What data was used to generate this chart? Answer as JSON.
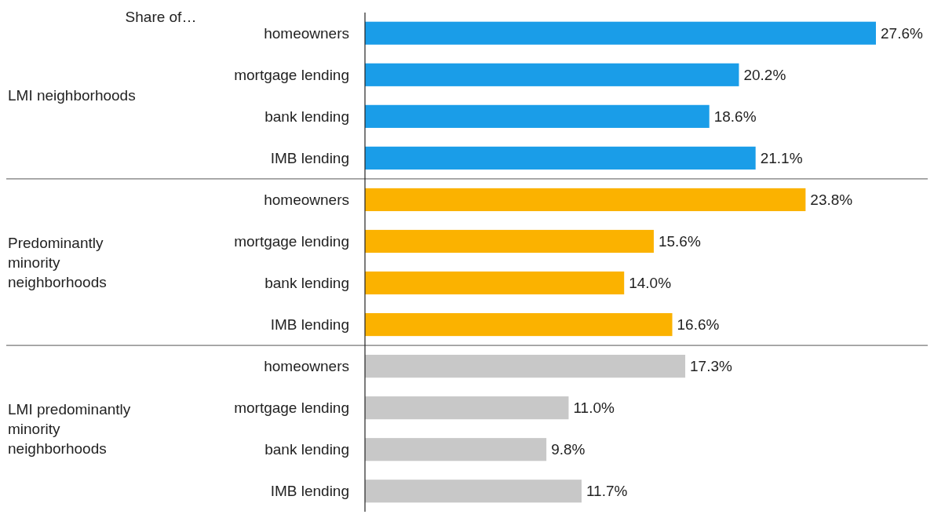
{
  "chart_data": {
    "type": "bar",
    "orientation": "horizontal",
    "ylabel": "Share of…",
    "categories": [
      "homeowners",
      "mortgage lending",
      "bank lending",
      "IMB lending",
      "homeowners",
      "mortgage lending",
      "bank lending",
      "IMB lending",
      "homeowners",
      "mortgage lending",
      "bank lending",
      "IMB lending"
    ],
    "series": [
      {
        "color": "#1a9de8",
        "values": [
          27.6,
          20.2,
          18.6,
          21.1,
          null,
          null,
          null,
          null,
          null,
          null,
          null,
          null
        ],
        "value_labels": [
          "27.6%",
          "20.2%",
          "18.6%",
          "21.1%",
          null,
          null,
          null,
          null,
          null,
          null,
          null,
          null
        ]
      },
      {
        "color": "#fbb200",
        "values": [
          null,
          null,
          null,
          null,
          23.8,
          15.6,
          14.0,
          16.6,
          null,
          null,
          null,
          null
        ],
        "value_labels": [
          null,
          null,
          null,
          null,
          "23.8%",
          "15.6%",
          "14.0%",
          "16.6%",
          null,
          null,
          null,
          null
        ]
      },
      {
        "color": "#c8c8c8",
        "values": [
          null,
          null,
          null,
          null,
          null,
          null,
          null,
          null,
          17.3,
          11.0,
          9.8,
          11.7
        ],
        "value_labels": [
          null,
          null,
          null,
          null,
          null,
          null,
          null,
          null,
          "17.3%",
          "11.0%",
          "9.8%",
          "11.7%"
        ]
      }
    ],
    "annotations": [
      "LMI neighborhoods",
      "Predominantly minority neighborhoods",
      "LMI predominantly minority neighborhoods"
    ]
  }
}
